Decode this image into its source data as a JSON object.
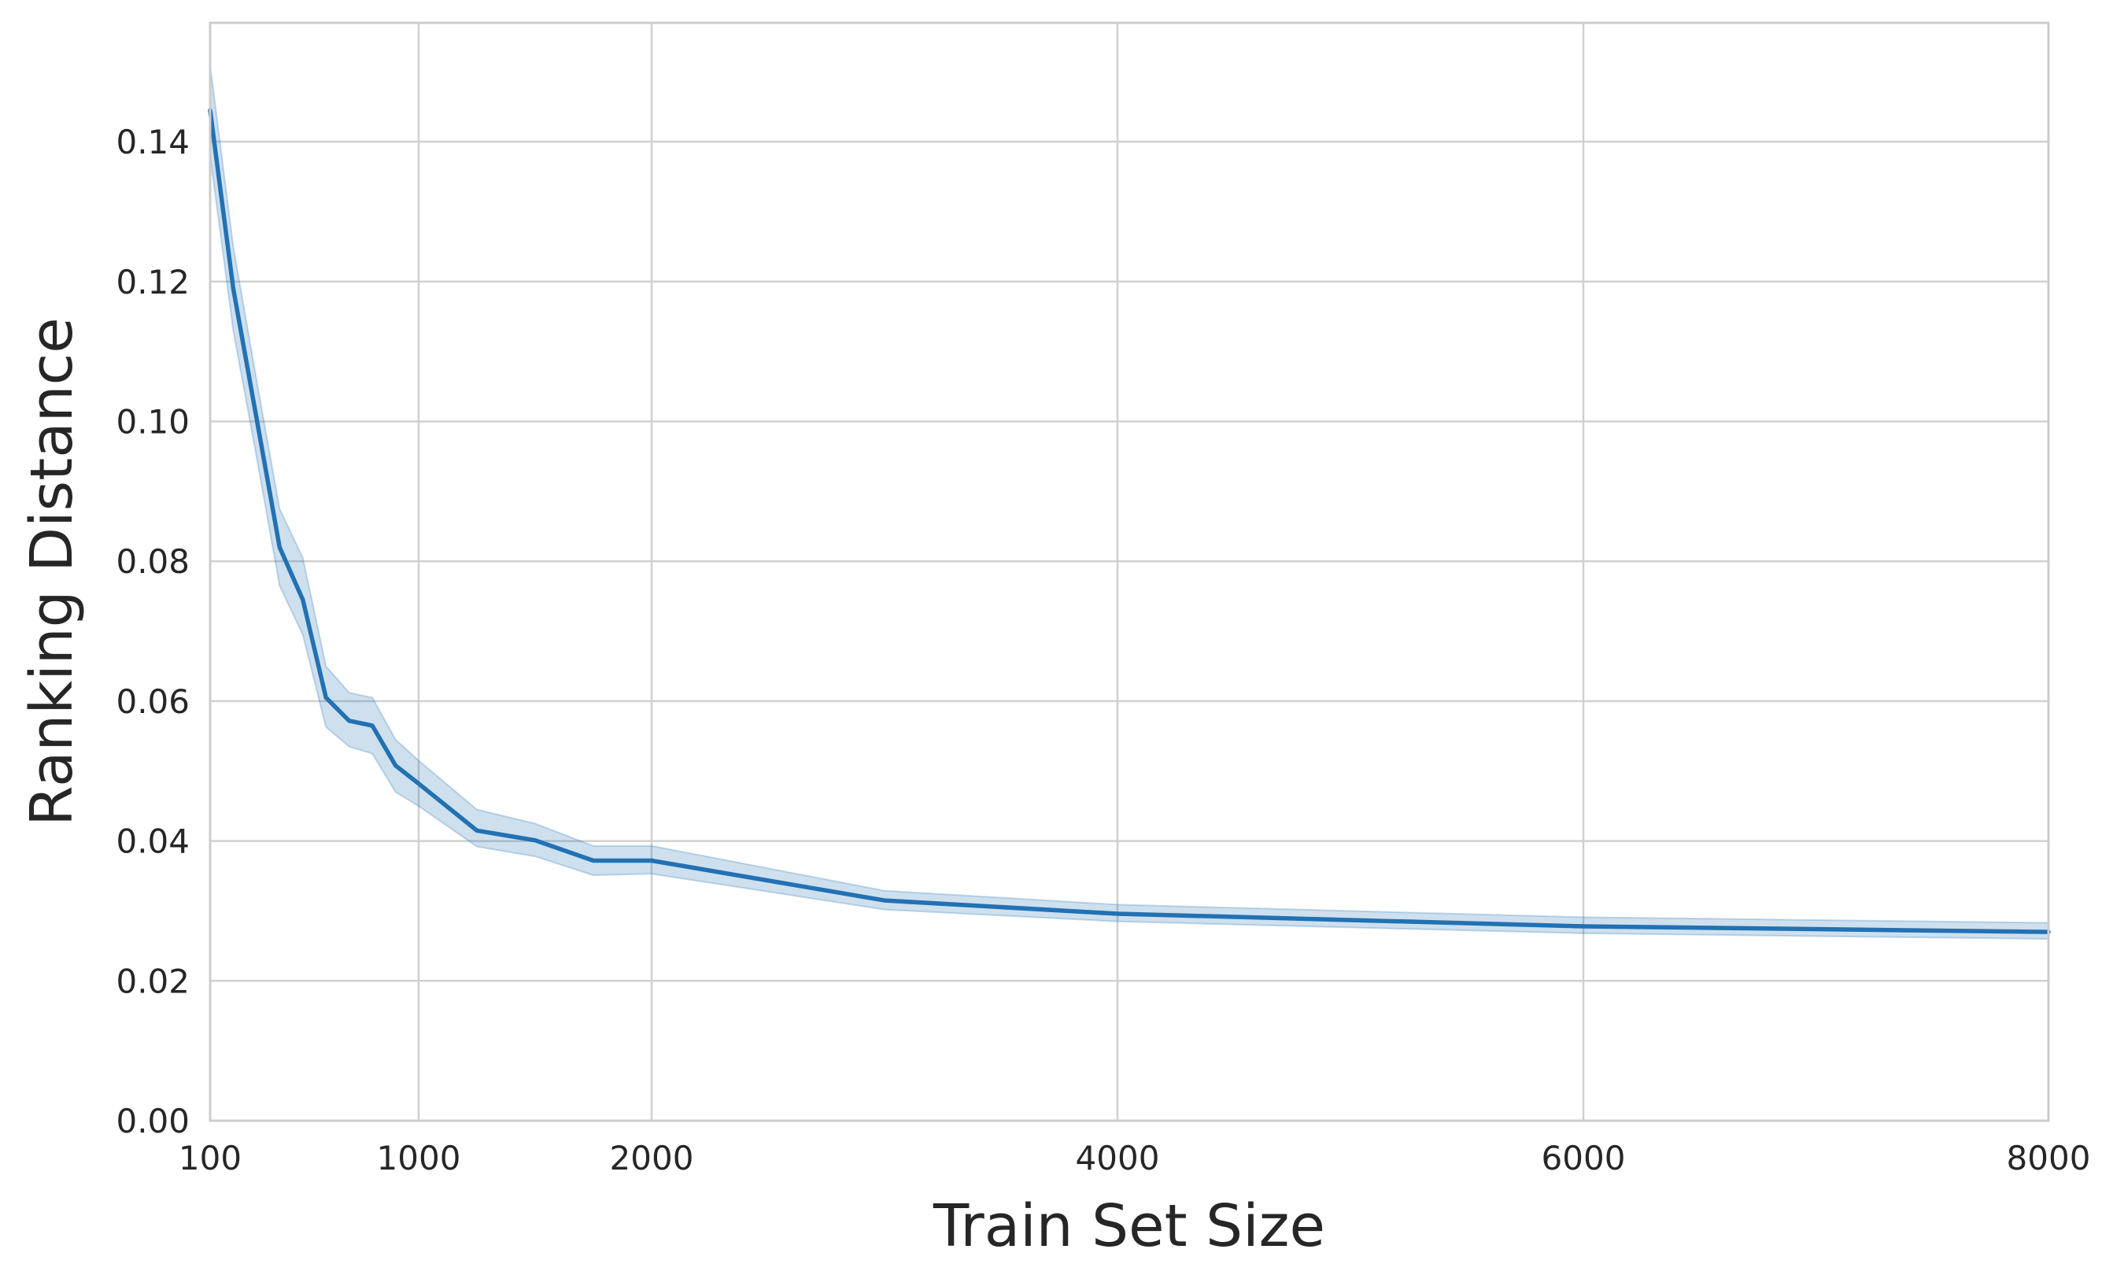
{
  "chart_data": {
    "type": "line",
    "title": "",
    "xlabel": "Train Set Size",
    "ylabel": "Ranking Distance",
    "xlim": [
      100,
      8000
    ],
    "ylim": [
      0,
      0.157
    ],
    "x_ticks": [
      100,
      1000,
      2000,
      4000,
      6000,
      8000
    ],
    "x_tick_labels": [
      "100",
      "1000",
      "2000",
      "4000",
      "6000",
      "8000"
    ],
    "y_ticks": [
      0.0,
      0.02,
      0.04,
      0.06,
      0.08,
      0.1,
      0.12,
      0.14
    ],
    "y_tick_labels": [
      "0.00",
      "0.02",
      "0.04",
      "0.06",
      "0.08",
      "0.10",
      "0.12",
      "0.14"
    ],
    "grid": true,
    "legend": "none",
    "colors": {
      "line": "#2271b3",
      "band": "#2271b3",
      "grid": "#d0d0d0",
      "frame": "#cccccc",
      "text": "#262626"
    },
    "series": [
      {
        "x": [
          100,
          200,
          300,
          400,
          500,
          600,
          700,
          800,
          900,
          1000,
          1250,
          1500,
          1750,
          2000,
          3000,
          4000,
          6000,
          8000
        ],
        "y": [
          0.1445,
          0.119,
          0.1005,
          0.082,
          0.0745,
          0.0605,
          0.0572,
          0.0565,
          0.0508,
          0.0482,
          0.0415,
          0.0401,
          0.0372,
          0.0372,
          0.0315,
          0.0296,
          0.0278,
          0.027
        ],
        "ci_lower": [
          0.138,
          0.113,
          0.095,
          0.0765,
          0.0695,
          0.0563,
          0.0535,
          0.0525,
          0.047,
          0.045,
          0.0392,
          0.0378,
          0.0351,
          0.0353,
          0.0302,
          0.0285,
          0.0268,
          0.026
        ],
        "ci_upper": [
          0.151,
          0.125,
          0.106,
          0.0875,
          0.0805,
          0.065,
          0.0612,
          0.0605,
          0.0545,
          0.0515,
          0.0445,
          0.0425,
          0.0393,
          0.0393,
          0.0329,
          0.0309,
          0.0291,
          0.0283
        ]
      }
    ]
  }
}
